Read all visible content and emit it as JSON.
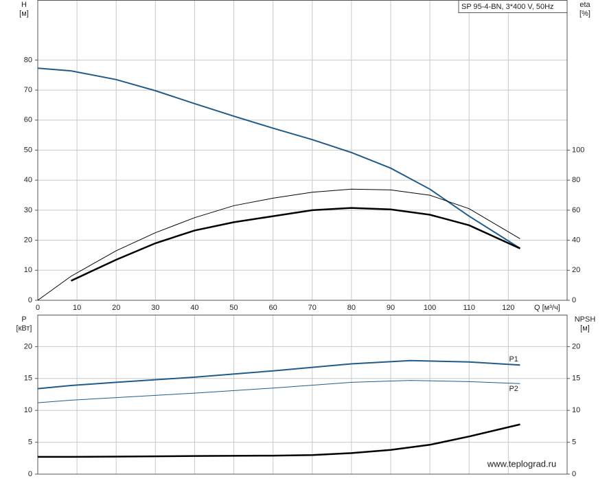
{
  "chart_data": [
    {
      "type": "line",
      "title": "SP 95-4-BN, 3*400 V, 50Hz",
      "x_label": "Q [м³/ч]",
      "y_label": "H",
      "y_unit": "[м]",
      "y2_label": "eta",
      "y2_unit": "[%]",
      "xlim": [
        0,
        135
      ],
      "xticks": [
        0,
        10,
        20,
        30,
        40,
        50,
        60,
        70,
        80,
        90,
        100,
        110,
        120
      ],
      "ylim": [
        0,
        100
      ],
      "yticks": [
        0,
        10,
        20,
        30,
        40,
        50,
        60,
        70,
        80
      ],
      "y2lim": [
        0,
        200
      ],
      "y2ticks": [
        0,
        20,
        40,
        60,
        80,
        100
      ],
      "grid": true,
      "series": [
        {
          "color": "#1f5a8a",
          "width": 2,
          "x": [
            0,
            8.5,
            20,
            30,
            40,
            50,
            60,
            70,
            80,
            90,
            100,
            110,
            123
          ],
          "values": [
            77.3,
            76.4,
            73.5,
            69.8,
            65.5,
            61.3,
            57.3,
            53.5,
            49.2,
            44,
            37,
            28,
            17.3
          ]
        },
        {
          "color": "#000000",
          "width": 1,
          "axis": "y2",
          "x": [
            0,
            8.5,
            20,
            30,
            40,
            50,
            60,
            70,
            80,
            90,
            100,
            110,
            123
          ],
          "values": [
            0,
            16,
            33,
            45,
            55,
            63,
            68,
            72,
            74,
            73.5,
            70,
            61,
            41
          ]
        },
        {
          "color": "#000000",
          "width": 2.5,
          "axis": "y2",
          "x": [
            8.5,
            20,
            30,
            40,
            50,
            60,
            70,
            80,
            90,
            100,
            110,
            123
          ],
          "values": [
            13,
            27,
            38,
            46.5,
            52,
            56,
            60,
            61.5,
            60.5,
            57,
            50,
            34.5
          ]
        }
      ]
    },
    {
      "type": "line",
      "y_label": "P",
      "y_unit": "[кВт]",
      "y2_label": "NPSH",
      "y2_unit": "[м]",
      "xlim": [
        0,
        135
      ],
      "ylim": [
        0,
        25
      ],
      "yticks": [
        0,
        5,
        10,
        15,
        20
      ],
      "y2lim": [
        0,
        25
      ],
      "y2ticks": [
        0,
        5,
        10,
        15,
        20
      ],
      "grid": true,
      "series": [
        {
          "name": "P1",
          "color": "#1f5a8a",
          "width": 2,
          "x": [
            0,
            8.5,
            20,
            40,
            60,
            80,
            95,
            110,
            123
          ],
          "values": [
            13.4,
            13.9,
            14.4,
            15.2,
            16.2,
            17.3,
            17.8,
            17.6,
            17.1
          ]
        },
        {
          "name": "P2",
          "color": "#1f5a8a",
          "width": 1,
          "x": [
            0,
            8.5,
            20,
            40,
            60,
            80,
            95,
            110,
            123
          ],
          "values": [
            11.2,
            11.6,
            12,
            12.7,
            13.5,
            14.4,
            14.7,
            14.5,
            14.2
          ]
        },
        {
          "color": "#000000",
          "width": 2.5,
          "axis": "y2",
          "x": [
            0,
            8.5,
            20,
            40,
            60,
            70,
            80,
            90,
            100,
            110,
            123
          ],
          "values": [
            2.7,
            2.7,
            2.75,
            2.85,
            2.9,
            3,
            3.3,
            3.8,
            4.6,
            5.9,
            7.8
          ]
        }
      ]
    }
  ],
  "watermark": "www.teplograd.ru"
}
